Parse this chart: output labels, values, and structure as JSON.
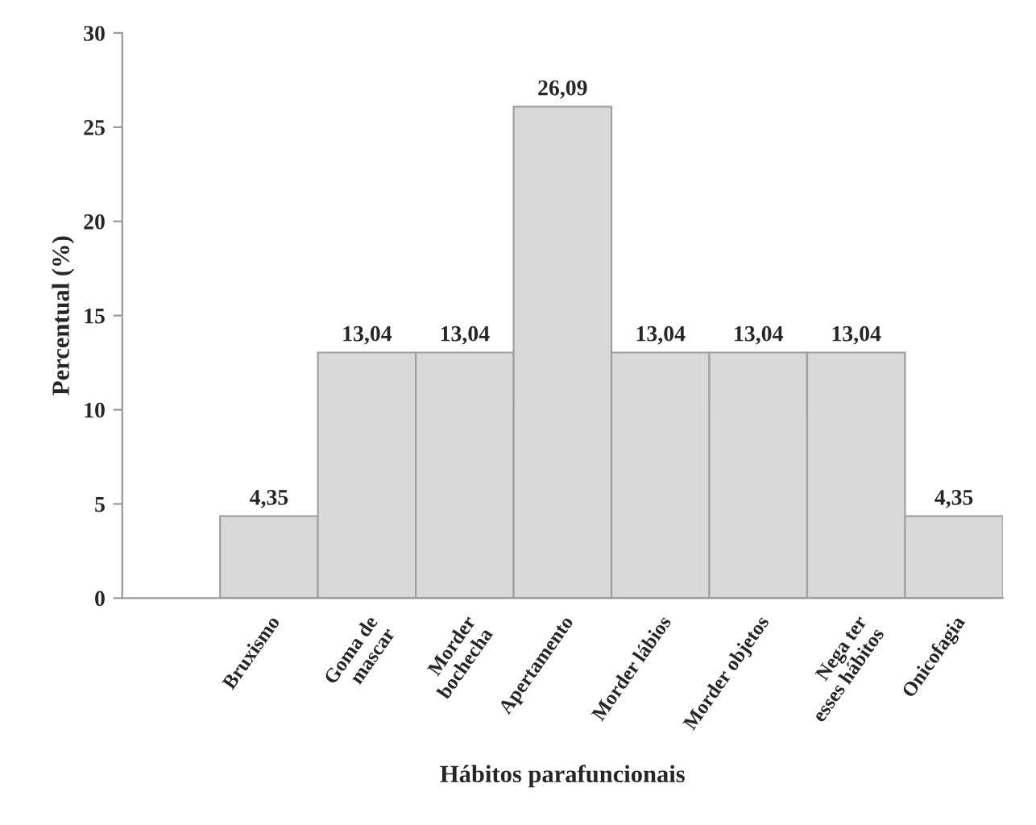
{
  "chart_data": {
    "type": "bar",
    "xlabel": "Hábitos parafuncionais",
    "ylabel": "Percentual (%)",
    "categories": [
      "Bruxismo",
      "Goma de\nmascar",
      "Morder\nbochecha",
      "Apertamento",
      "Morder lábios",
      "Morder objetos",
      "Nega ter\nesses hábitos",
      "Onicofagia"
    ],
    "values": [
      4.35,
      13.04,
      13.04,
      26.09,
      13.04,
      13.04,
      13.04,
      4.35
    ],
    "value_labels": [
      "4,35",
      "13,04",
      "13,04",
      "26,09",
      "13,04",
      "13,04",
      "13,04",
      "4,35"
    ],
    "color": "#d9d9d9",
    "ylim": [
      0,
      30
    ],
    "yticks": [
      0,
      5,
      10,
      15,
      20,
      25,
      30
    ],
    "grid": false
  }
}
